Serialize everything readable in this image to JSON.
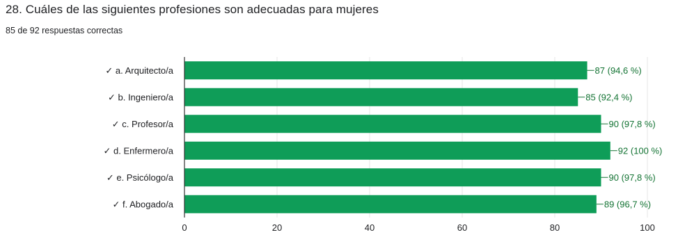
{
  "question": {
    "title": "28. Cuáles de las siguientes profesiones son adecuadas para mujeres",
    "summary": "85 de 92 respuestas correctas"
  },
  "colors": {
    "bar": "#0f9d58",
    "label": "#137333",
    "grid": "#e6e6e6",
    "axis": "#333333"
  },
  "chart_data": {
    "type": "bar",
    "orientation": "horizontal",
    "categories": [
      "✓ a. Arquitecto/a",
      "✓ b. Ingeniero/a",
      "✓ c. Profesor/a",
      "✓ d. Enfermero/a",
      "✓ e. Psicólogo/a",
      "✓ f. Abogado/a"
    ],
    "values": [
      87,
      85,
      90,
      92,
      90,
      89
    ],
    "data_labels": [
      "87 (94,6 %)",
      "85 (92,4 %)",
      "90 (97,8 %)",
      "92 (100 %)",
      "90 (97,8 %)",
      "89 (96,7 %)"
    ],
    "xlim": [
      0,
      100
    ],
    "xticks": [
      0,
      20,
      40,
      60,
      80,
      100
    ],
    "grid": true,
    "legend": "none"
  }
}
